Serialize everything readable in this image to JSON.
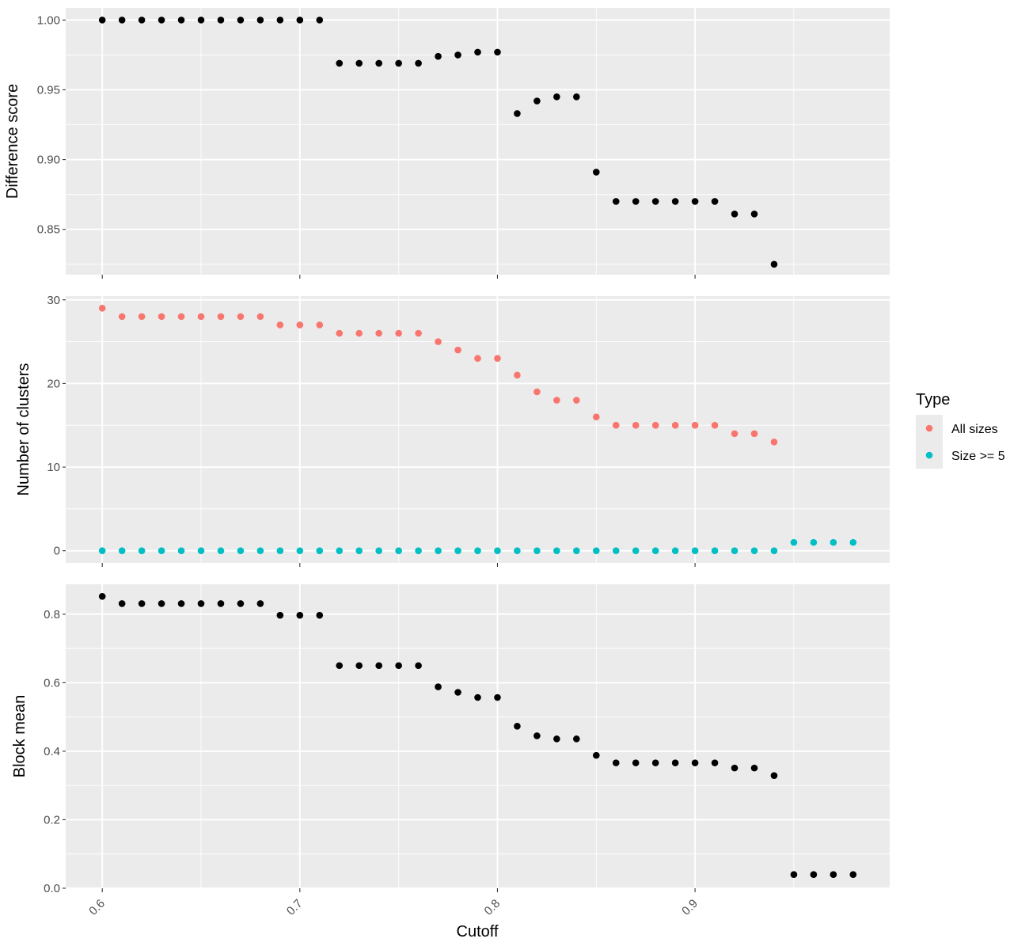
{
  "chart_data": {
    "type": "scatter",
    "xlabel": "Cutoff",
    "x_ticks": [
      0.6,
      0.7,
      0.8,
      0.9
    ],
    "x_tick_labels": [
      "0.6",
      "0.7",
      "0.8",
      "0.9"
    ],
    "xlim": [
      0.5815,
      0.9985
    ],
    "grid": true,
    "legend": {
      "title": "Type",
      "placement": "right",
      "items": [
        {
          "label": "All sizes",
          "color": "#F8766D"
        },
        {
          "label": "Size >= 5",
          "color": "#00BFC4"
        }
      ]
    },
    "panels": [
      {
        "ylabel": "Difference score",
        "ylim": [
          0.8175,
          1.0087
        ],
        "y_ticks": [
          0.85,
          0.9,
          0.95,
          1.0
        ],
        "y_tick_labels": [
          "0.85",
          "0.90",
          "0.95",
          "1.00"
        ],
        "series": [
          {
            "color": "#000000",
            "x": [
              0.6,
              0.61,
              0.62,
              0.63,
              0.64,
              0.65,
              0.66,
              0.67,
              0.68,
              0.69,
              0.7,
              0.71,
              0.72,
              0.73,
              0.74,
              0.75,
              0.76,
              0.77,
              0.78,
              0.79,
              0.8,
              0.81,
              0.82,
              0.83,
              0.84,
              0.85,
              0.86,
              0.87,
              0.88,
              0.89,
              0.9,
              0.91,
              0.92,
              0.93,
              0.94
            ],
            "values": [
              1.0,
              1.0,
              1.0,
              1.0,
              1.0,
              1.0,
              1.0,
              1.0,
              1.0,
              1.0,
              1.0,
              1.0,
              0.969,
              0.969,
              0.969,
              0.969,
              0.969,
              0.974,
              0.975,
              0.977,
              0.977,
              0.933,
              0.942,
              0.945,
              0.945,
              0.891,
              0.87,
              0.87,
              0.87,
              0.87,
              0.87,
              0.87,
              0.861,
              0.861,
              0.825
            ]
          }
        ]
      },
      {
        "ylabel": "Number of clusters",
        "ylim": [
          -1.45,
          30.45
        ],
        "y_ticks": [
          0,
          10,
          20,
          30
        ],
        "y_tick_labels": [
          "0",
          "10",
          "20",
          "30"
        ],
        "series": [
          {
            "name": "All sizes",
            "color": "#F8766D",
            "x": [
              0.6,
              0.61,
              0.62,
              0.63,
              0.64,
              0.65,
              0.66,
              0.67,
              0.68,
              0.69,
              0.7,
              0.71,
              0.72,
              0.73,
              0.74,
              0.75,
              0.76,
              0.77,
              0.78,
              0.79,
              0.8,
              0.81,
              0.82,
              0.83,
              0.84,
              0.85,
              0.86,
              0.87,
              0.88,
              0.89,
              0.9,
              0.91,
              0.92,
              0.93,
              0.94
            ],
            "values": [
              29,
              28,
              28,
              28,
              28,
              28,
              28,
              28,
              28,
              27,
              27,
              27,
              26,
              26,
              26,
              26,
              26,
              25,
              24,
              23,
              23,
              21,
              19,
              18,
              18,
              16,
              15,
              15,
              15,
              15,
              15,
              15,
              14,
              14,
              13
            ]
          },
          {
            "name": "Size >= 5",
            "color": "#00BFC4",
            "x": [
              0.6,
              0.61,
              0.62,
              0.63,
              0.64,
              0.65,
              0.66,
              0.67,
              0.68,
              0.69,
              0.7,
              0.71,
              0.72,
              0.73,
              0.74,
              0.75,
              0.76,
              0.77,
              0.78,
              0.79,
              0.8,
              0.81,
              0.82,
              0.83,
              0.84,
              0.85,
              0.86,
              0.87,
              0.88,
              0.89,
              0.9,
              0.91,
              0.92,
              0.93,
              0.94,
              0.95,
              0.96,
              0.97,
              0.98
            ],
            "values": [
              0,
              0,
              0,
              0,
              0,
              0,
              0,
              0,
              0,
              0,
              0,
              0,
              0,
              0,
              0,
              0,
              0,
              0,
              0,
              0,
              0,
              0,
              0,
              0,
              0,
              0,
              0,
              0,
              0,
              0,
              0,
              0,
              0,
              0,
              0,
              1,
              1,
              1,
              1
            ]
          }
        ]
      },
      {
        "ylabel": "Block mean",
        "ylim": [
          0.0,
          0.8875
        ],
        "y_ticks": [
          0.0,
          0.2,
          0.4,
          0.6,
          0.8
        ],
        "y_tick_labels": [
          "0.0",
          "0.2",
          "0.4",
          "0.6",
          "0.8"
        ],
        "series": [
          {
            "color": "#000000",
            "x": [
              0.6,
              0.61,
              0.62,
              0.63,
              0.64,
              0.65,
              0.66,
              0.67,
              0.68,
              0.69,
              0.7,
              0.71,
              0.72,
              0.73,
              0.74,
              0.75,
              0.76,
              0.77,
              0.78,
              0.79,
              0.8,
              0.81,
              0.82,
              0.83,
              0.84,
              0.85,
              0.86,
              0.87,
              0.88,
              0.89,
              0.9,
              0.91,
              0.92,
              0.93,
              0.94,
              0.95,
              0.96,
              0.97,
              0.98
            ],
            "values": [
              0.852,
              0.831,
              0.831,
              0.831,
              0.831,
              0.831,
              0.831,
              0.831,
              0.831,
              0.797,
              0.797,
              0.797,
              0.65,
              0.65,
              0.65,
              0.65,
              0.65,
              0.588,
              0.572,
              0.557,
              0.557,
              0.473,
              0.445,
              0.436,
              0.436,
              0.388,
              0.366,
              0.366,
              0.366,
              0.366,
              0.366,
              0.366,
              0.351,
              0.351,
              0.329,
              0.04,
              0.04,
              0.04,
              0.04
            ]
          }
        ]
      }
    ]
  }
}
